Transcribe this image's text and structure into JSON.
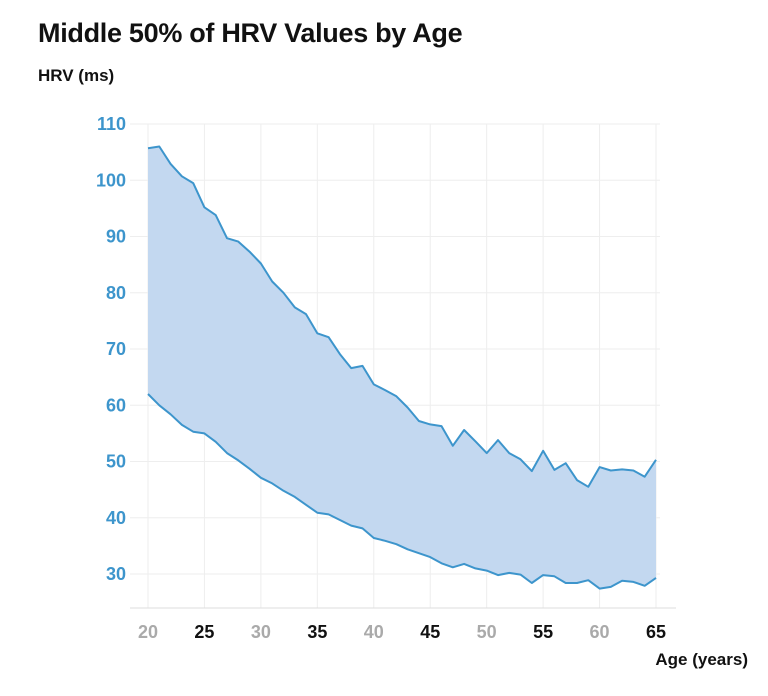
{
  "chart_data": {
    "type": "area",
    "title": "Middle 50% of HRV Values by Age",
    "ylabel": "HRV (ms)",
    "xlabel": "Age (years)",
    "xlim": [
      20,
      65
    ],
    "ylim": [
      25,
      110
    ],
    "x_ticks": [
      20,
      25,
      30,
      35,
      40,
      45,
      50,
      55,
      60,
      65
    ],
    "x_tick_colors": [
      "#aaaaaa",
      "#111111",
      "#aaaaaa",
      "#111111",
      "#aaaaaa",
      "#111111",
      "#aaaaaa",
      "#111111",
      "#aaaaaa",
      "#111111"
    ],
    "y_ticks": [
      30,
      40,
      50,
      60,
      70,
      80,
      90,
      100,
      110
    ],
    "grid": true,
    "colors": {
      "line": "#3d95cc",
      "fill": "#c3d8f0",
      "grid": "#eeeeee",
      "ytick": "#3d95cc"
    },
    "x": [
      20,
      21,
      22,
      23,
      24,
      25,
      26,
      27,
      28,
      29,
      30,
      31,
      32,
      33,
      34,
      35,
      36,
      37,
      38,
      39,
      40,
      41,
      42,
      43,
      44,
      45,
      46,
      47,
      48,
      49,
      50,
      51,
      52,
      53,
      54,
      55,
      56,
      57,
      58,
      59,
      60,
      61,
      62,
      63,
      64,
      65
    ],
    "upper": [
      105.7,
      106.0,
      102.9,
      100.7,
      99.5,
      95.2,
      93.8,
      89.7,
      89.1,
      87.3,
      85.2,
      82.0,
      80.0,
      77.4,
      76.2,
      72.8,
      72.1,
      69.1,
      66.6,
      67.0,
      63.7,
      62.7,
      61.6,
      59.6,
      57.2,
      56.6,
      56.3,
      52.8,
      55.6,
      53.6,
      51.5,
      53.8,
      51.5,
      50.4,
      48.3,
      51.9,
      48.5,
      49.7,
      46.7,
      45.5,
      49.0,
      48.4,
      48.6,
      48.4,
      47.3,
      50.3
    ],
    "lower": [
      62.0,
      60.0,
      58.4,
      56.5,
      55.3,
      55.0,
      53.5,
      51.5,
      50.2,
      48.7,
      47.1,
      46.1,
      44.8,
      43.7,
      42.3,
      40.9,
      40.6,
      39.6,
      38.6,
      38.1,
      36.4,
      35.9,
      35.3,
      34.4,
      33.7,
      33.0,
      31.9,
      31.2,
      31.8,
      31.0,
      30.6,
      29.8,
      30.2,
      29.9,
      28.4,
      29.8,
      29.6,
      28.4,
      28.4,
      28.9,
      27.4,
      27.7,
      28.8,
      28.6,
      27.9,
      29.3
    ]
  }
}
